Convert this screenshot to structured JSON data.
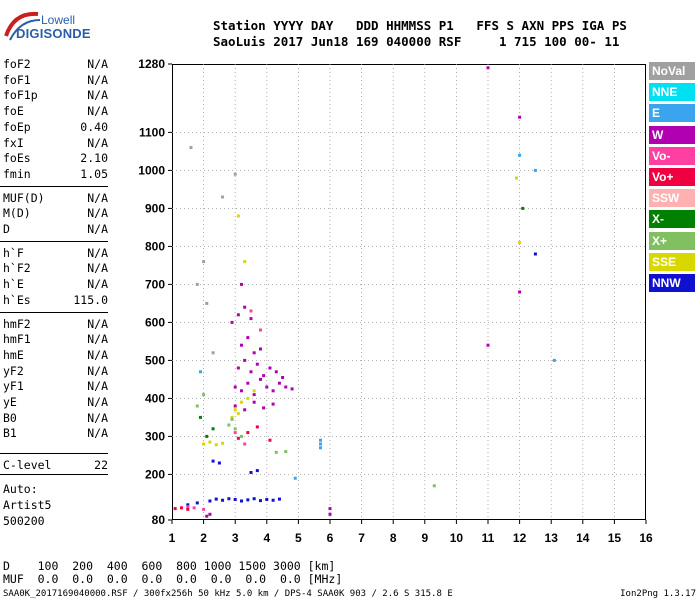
{
  "logo": {
    "line1": "Lowell",
    "line2": "DIGISONDE"
  },
  "header": {
    "labels": "Station YYYY DAY   DDD HHMMSS P1   FFS S AXN PPS IGA PS",
    "values": "SaoLuis 2017 Jun18 169 040000 RSF     1 715 100 00- 11"
  },
  "params": [
    {
      "label": "foF2",
      "value": "N/A"
    },
    {
      "label": "foF1",
      "value": "N/A"
    },
    {
      "label": "foF1p",
      "value": "N/A"
    },
    {
      "label": "foE",
      "value": "N/A"
    },
    {
      "label": "foEp",
      "value": "0.40"
    },
    {
      "label": "fxI",
      "value": "N/A"
    },
    {
      "label": "foEs",
      "value": "2.10"
    },
    {
      "label": "fmin",
      "value": "1.05"
    },
    {
      "label": "MUF(D)",
      "value": "N/A"
    },
    {
      "label": "M(D)",
      "value": "N/A"
    },
    {
      "label": "D",
      "value": "N/A"
    },
    {
      "label": "h`F",
      "value": "N/A"
    },
    {
      "label": "h`F2",
      "value": "N/A"
    },
    {
      "label": "h`E",
      "value": "N/A"
    },
    {
      "label": "h`Es",
      "value": "115.0"
    },
    {
      "label": "hmF2",
      "value": "N/A"
    },
    {
      "label": "hmF1",
      "value": "N/A"
    },
    {
      "label": "hmE",
      "value": "N/A"
    },
    {
      "label": "yF2",
      "value": "N/A"
    },
    {
      "label": "yF1",
      "value": "N/A"
    },
    {
      "label": "yE",
      "value": "N/A"
    },
    {
      "label": "B0",
      "value": "N/A"
    },
    {
      "label": "B1",
      "value": "N/A"
    }
  ],
  "clevel": {
    "label": "C-level",
    "value": "22"
  },
  "auto": {
    "line1": "Auto:",
    "line2": "Artist5",
    "line3": "500200"
  },
  "legend": [
    {
      "label": "NoVal",
      "color": "#a0a0a0"
    },
    {
      "label": "NNE",
      "color": "#00e0f0"
    },
    {
      "label": "E",
      "color": "#3aa4ee"
    },
    {
      "label": "W",
      "color": "#b000b0"
    },
    {
      "label": "Vo-",
      "color": "#ff40a0"
    },
    {
      "label": "Vo+",
      "color": "#f00040"
    },
    {
      "label": "SSW",
      "color": "#ffb0b0"
    },
    {
      "label": "X-",
      "color": "#008000"
    },
    {
      "label": "X+",
      "color": "#80c060"
    },
    {
      "label": "SSE",
      "color": "#d8d800"
    },
    {
      "label": "NNW",
      "color": "#1010d0"
    }
  ],
  "chart_data": {
    "type": "scatter",
    "xlabel": "",
    "ylabel": "",
    "xlim": [
      1,
      16
    ],
    "ylim": [
      80,
      1280
    ],
    "x_ticks": [
      1,
      2,
      3,
      4,
      5,
      6,
      7,
      8,
      9,
      10,
      11,
      12,
      13,
      14,
      15,
      16
    ],
    "y_ticks": [
      80,
      200,
      300,
      400,
      500,
      600,
      700,
      800,
      900,
      1000,
      1100,
      1280
    ],
    "series": [
      {
        "name": "W",
        "color": "#b000b0",
        "points": [
          [
            3.0,
            430
          ],
          [
            3.2,
            420
          ],
          [
            3.4,
            440
          ],
          [
            3.6,
            410
          ],
          [
            3.8,
            450
          ],
          [
            4.0,
            430
          ],
          [
            4.2,
            420
          ],
          [
            4.4,
            440
          ],
          [
            4.6,
            430
          ],
          [
            4.8,
            425
          ],
          [
            3.1,
            480
          ],
          [
            3.3,
            500
          ],
          [
            3.5,
            470
          ],
          [
            3.7,
            490
          ],
          [
            3.9,
            460
          ],
          [
            4.1,
            480
          ],
          [
            3.2,
            540
          ],
          [
            3.4,
            560
          ],
          [
            3.6,
            520
          ],
          [
            3.8,
            530
          ],
          [
            3.0,
            380
          ],
          [
            3.3,
            370
          ],
          [
            3.6,
            390
          ],
          [
            3.9,
            375
          ],
          [
            4.2,
            385
          ],
          [
            2.9,
            600
          ],
          [
            3.1,
            620
          ],
          [
            3.3,
            640
          ],
          [
            3.5,
            610
          ],
          [
            3.2,
            700
          ],
          [
            11.0,
            1270
          ],
          [
            12.0,
            1140
          ],
          [
            12.0,
            680
          ],
          [
            11.0,
            540
          ],
          [
            6.0,
            110
          ],
          [
            6.0,
            95
          ],
          [
            2.1,
            90
          ],
          [
            2.2,
            95
          ],
          [
            4.3,
            470
          ],
          [
            4.5,
            455
          ]
        ]
      },
      {
        "name": "NNW",
        "color": "#1010d0",
        "points": [
          [
            2.2,
            130
          ],
          [
            2.4,
            135
          ],
          [
            2.6,
            132
          ],
          [
            2.8,
            136
          ],
          [
            3.0,
            134
          ],
          [
            3.2,
            130
          ],
          [
            3.4,
            133
          ],
          [
            3.6,
            136
          ],
          [
            3.8,
            131
          ],
          [
            4.0,
            134
          ],
          [
            4.2,
            132
          ],
          [
            4.4,
            135
          ],
          [
            3.5,
            205
          ],
          [
            3.7,
            210
          ],
          [
            2.3,
            235
          ],
          [
            2.5,
            230
          ],
          [
            12.5,
            780
          ],
          [
            1.5,
            120
          ],
          [
            1.8,
            125
          ]
        ]
      },
      {
        "name": "SSE",
        "color": "#d8d800",
        "points": [
          [
            3.0,
            370
          ],
          [
            3.1,
            360
          ],
          [
            2.9,
            350
          ],
          [
            3.2,
            390
          ],
          [
            2.0,
            280
          ],
          [
            2.2,
            285
          ],
          [
            2.4,
            278
          ],
          [
            2.6,
            282
          ],
          [
            3.4,
            400
          ],
          [
            3.6,
            420
          ],
          [
            11.9,
            980
          ],
          [
            12.0,
            810
          ],
          [
            3.3,
            760
          ],
          [
            3.1,
            880
          ]
        ]
      },
      {
        "name": "X+",
        "color": "#80c060",
        "points": [
          [
            2.8,
            330
          ],
          [
            2.9,
            345
          ],
          [
            3.0,
            320
          ],
          [
            3.2,
            300
          ],
          [
            1.8,
            380
          ],
          [
            2.0,
            410
          ],
          [
            9.3,
            170
          ],
          [
            4.3,
            258
          ],
          [
            4.6,
            260
          ]
        ]
      },
      {
        "name": "X-",
        "color": "#008000",
        "points": [
          [
            2.1,
            300
          ],
          [
            2.3,
            320
          ],
          [
            12.1,
            900
          ],
          [
            1.9,
            350
          ]
        ]
      },
      {
        "name": "E",
        "color": "#3aa4ee",
        "points": [
          [
            5.7,
            280
          ],
          [
            5.7,
            290
          ],
          [
            5.7,
            270
          ],
          [
            12.0,
            1040
          ],
          [
            12.5,
            1000
          ],
          [
            13.1,
            500
          ],
          [
            4.9,
            190
          ],
          [
            1.9,
            470
          ]
        ]
      },
      {
        "name": "Vo-",
        "color": "#ff40a0",
        "points": [
          [
            3.5,
            630
          ],
          [
            3.8,
            580
          ],
          [
            1.5,
            115
          ],
          [
            1.7,
            112
          ],
          [
            2.0,
            108
          ],
          [
            3.0,
            310
          ],
          [
            3.3,
            280
          ]
        ]
      },
      {
        "name": "Vo+",
        "color": "#f00040",
        "points": [
          [
            1.1,
            110
          ],
          [
            1.3,
            112
          ],
          [
            1.5,
            108
          ],
          [
            3.1,
            295
          ],
          [
            3.4,
            310
          ],
          [
            3.7,
            325
          ],
          [
            4.1,
            290
          ]
        ]
      },
      {
        "name": "NoVal",
        "color": "#a0a0a0",
        "points": [
          [
            1.6,
            1060
          ],
          [
            2.1,
            650
          ],
          [
            2.3,
            520
          ],
          [
            1.8,
            700
          ],
          [
            2.0,
            760
          ],
          [
            2.6,
            930
          ],
          [
            3.0,
            990
          ]
        ]
      }
    ]
  },
  "bottom": {
    "row1": "D    100  200  400  600  800 1000 1500 3000 [km]",
    "row2": "MUF  0.0  0.0  0.0  0.0  0.0  0.0  0.0  0.0 [MHz]",
    "footer": "SAA0K_2017169040000.RSF / 300fx256h 50 kHz 5.0 km / DPS-4 SAA0K 903 / 2.6 S 315.8 E",
    "footer_right": "Ion2Png 1.3.17"
  }
}
